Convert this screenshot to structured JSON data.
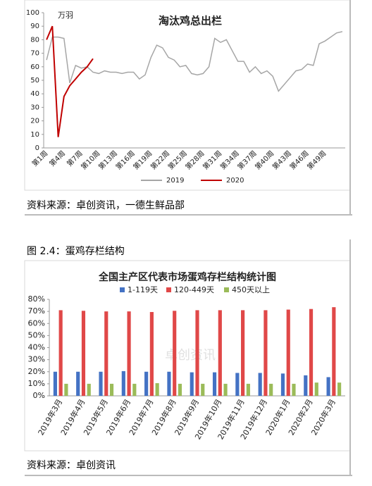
{
  "chart_data": [
    {
      "type": "line",
      "title": "淘汰鸡总出栏",
      "unit_label": "万羽",
      "categories": [
        "第1周",
        null,
        null,
        "第4周",
        null,
        null,
        "第7周",
        null,
        null,
        "第10周",
        null,
        null,
        "第13周",
        null,
        null,
        "第16周",
        null,
        null,
        "第19周",
        null,
        null,
        "第22周",
        null,
        null,
        "第25周",
        null,
        null,
        "第28周",
        null,
        null,
        "第31周",
        null,
        null,
        "第34周",
        null,
        null,
        "第37周",
        null,
        null,
        "第40周",
        null,
        null,
        "第43周",
        null,
        null,
        "第46周",
        null,
        null,
        "第49周",
        null,
        null,
        null
      ],
      "series": [
        {
          "name": "2019",
          "color": "#a6a6a6",
          "values": [
            65,
            82,
            82,
            81,
            48,
            61,
            59,
            60,
            56,
            55,
            57,
            56,
            56,
            55,
            56,
            56,
            51,
            54,
            67,
            76,
            74,
            67,
            65,
            60,
            61,
            55,
            54,
            55,
            60,
            81,
            78,
            80,
            72,
            64,
            64,
            56,
            60,
            55,
            57,
            53,
            42,
            47,
            52,
            57,
            58,
            62,
            61,
            77,
            79,
            82,
            85,
            86
          ]
        },
        {
          "name": "2020",
          "color": "#c00000",
          "values": [
            80,
            90,
            8,
            38,
            46,
            51,
            56,
            60,
            66,
            null,
            null,
            null,
            null,
            null,
            null,
            null,
            null,
            null,
            null,
            null,
            null,
            null,
            null,
            null,
            null,
            null,
            null,
            null,
            null,
            null,
            null,
            null,
            null,
            null,
            null,
            null,
            null,
            null,
            null,
            null,
            null,
            null,
            null,
            null,
            null,
            null,
            null,
            null,
            null,
            null,
            null,
            null
          ]
        }
      ],
      "ylim": [
        0,
        100
      ],
      "yticks": [
        0,
        10,
        20,
        30,
        40,
        50,
        60,
        70,
        80,
        90,
        100
      ],
      "grid": false,
      "legend": "bottom"
    },
    {
      "type": "bar",
      "title": "全国主产区代表市场蛋鸡存栏结构统计图",
      "watermark": "卓创资讯",
      "categories": [
        "2019年3月",
        "2019年4月",
        "2019年5月",
        "2019年6月",
        "2019年7月",
        "2019年8月",
        "2019年9月",
        "2019年10月",
        "2019年11月",
        "2019年12月",
        "2020年1月",
        "2020年2月",
        "2020年3月"
      ],
      "series": [
        {
          "name": "1-119天",
          "color": "#4472c4",
          "values": [
            20,
            20,
            20,
            20.5,
            20,
            20,
            19.5,
            19.5,
            19,
            19,
            18.5,
            17,
            15.5
          ]
        },
        {
          "name": "120-449天",
          "color": "#e04848",
          "values": [
            71,
            70.5,
            70,
            70,
            69.5,
            70.5,
            71,
            71,
            71,
            71,
            71.5,
            72,
            73.5
          ]
        },
        {
          "name": "450天以上",
          "color": "#9bbb59",
          "values": [
            10,
            10,
            10,
            10,
            10.5,
            10,
            10,
            10,
            10,
            10,
            10,
            11,
            11
          ]
        }
      ],
      "ylim": [
        0,
        80
      ],
      "yticks": [
        {
          "value": 0,
          "label": "0%"
        },
        {
          "value": 10,
          "label": "10%"
        },
        {
          "value": 20,
          "label": "20%"
        },
        {
          "value": 30,
          "label": "30%"
        },
        {
          "value": 40,
          "label": "40%"
        },
        {
          "value": 50,
          "label": "50%"
        },
        {
          "value": 60,
          "label": "60%"
        },
        {
          "value": 70,
          "label": "70%"
        },
        {
          "value": 80,
          "label": "80%"
        }
      ],
      "grid": false,
      "legend": "top"
    }
  ],
  "source_top": "资料来源：卓创资讯，一德生鲜品部",
  "figure_caption": "图 2.4：蛋鸡存栏结构",
  "source_bottom": "资料来源：卓创资讯"
}
